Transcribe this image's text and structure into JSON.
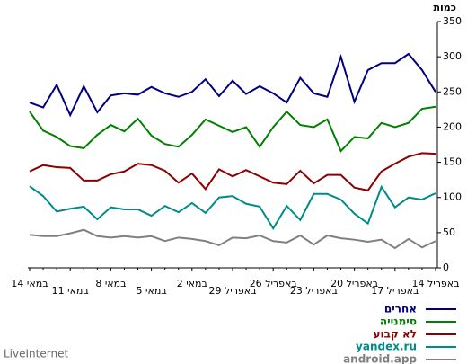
{
  "chart_data": {
    "type": "line",
    "ylabel": "כמות",
    "watermark": "LiveInternet",
    "categories": [
      "14 במאי",
      null,
      null,
      "11 במאי",
      null,
      null,
      "8 במאי",
      null,
      null,
      "5 במאי",
      null,
      null,
      "2 במאי",
      null,
      null,
      "29 באפריל",
      null,
      null,
      "26 באפריל",
      null,
      null,
      "23 באפריל",
      null,
      null,
      "20 באפריל",
      null,
      null,
      "17 באפריל",
      null,
      null,
      "14 באפריל"
    ],
    "ylim": [
      0,
      350
    ],
    "yticks": [
      0,
      50,
      100,
      150,
      200,
      250,
      300,
      350
    ],
    "grid": false,
    "series": [
      {
        "name": "אחרים",
        "color": "#000080",
        "values": [
          235,
          228,
          260,
          217,
          258,
          221,
          245,
          248,
          246,
          257,
          248,
          243,
          250,
          268,
          244,
          266,
          247,
          258,
          248,
          235,
          270,
          248,
          243,
          300,
          236,
          281,
          291,
          291,
          304,
          281,
          250
        ]
      },
      {
        "name": "סימנייה",
        "color": "#008000",
        "values": [
          222,
          195,
          186,
          173,
          170,
          189,
          203,
          194,
          212,
          188,
          176,
          172,
          189,
          211,
          202,
          193,
          200,
          172,
          200,
          222,
          203,
          200,
          211,
          166,
          186,
          184,
          206,
          200,
          206,
          226,
          229
        ]
      },
      {
        "name": "לא קבוע",
        "color": "#8b0000",
        "values": [
          137,
          146,
          143,
          142,
          124,
          124,
          133,
          137,
          148,
          146,
          138,
          121,
          134,
          112,
          140,
          130,
          139,
          130,
          121,
          119,
          138,
          120,
          132,
          132,
          114,
          110,
          137,
          148,
          158,
          163,
          162
        ]
      },
      {
        "name": "yandex.ru",
        "color": "#008b8b",
        "values": [
          116,
          102,
          80,
          84,
          87,
          69,
          86,
          83,
          83,
          74,
          88,
          79,
          92,
          78,
          100,
          102,
          91,
          87,
          56,
          88,
          68,
          105,
          105,
          97,
          77,
          63,
          115,
          86,
          100,
          97,
          106
        ]
      },
      {
        "name": "android.app",
        "color": "#808080",
        "values": [
          47,
          45,
          45,
          49,
          54,
          45,
          43,
          45,
          43,
          45,
          38,
          43,
          41,
          38,
          32,
          43,
          42,
          46,
          38,
          36,
          46,
          33,
          46,
          42,
          40,
          37,
          40,
          28,
          41,
          29,
          38
        ]
      }
    ]
  }
}
